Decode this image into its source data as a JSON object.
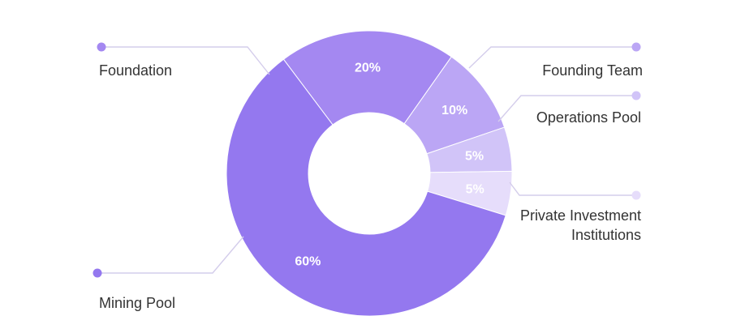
{
  "chart_data": {
    "type": "pie",
    "variant": "donut",
    "slices": [
      {
        "label": "Foundation",
        "value": 20,
        "value_label": "20%",
        "color": "#a488f1"
      },
      {
        "label": "Founding Team",
        "value": 10,
        "value_label": "10%",
        "color": "#bba6f5"
      },
      {
        "label": "Operations Pool",
        "value": 5,
        "value_label": "5%",
        "color": "#d1c4f8"
      },
      {
        "label": "Private Investment Institutions",
        "value": 5,
        "value_label": "5%",
        "color": "#e6ddfb"
      },
      {
        "label": "Mining Pool",
        "value": 60,
        "value_label": "60%",
        "color": "#9478ef"
      }
    ],
    "legend_lines": {
      "Private Investment Institutions": [
        "Private Investment",
        "Institutions"
      ]
    },
    "leader_color": "#d4cdeb",
    "text_color": "#333333"
  }
}
